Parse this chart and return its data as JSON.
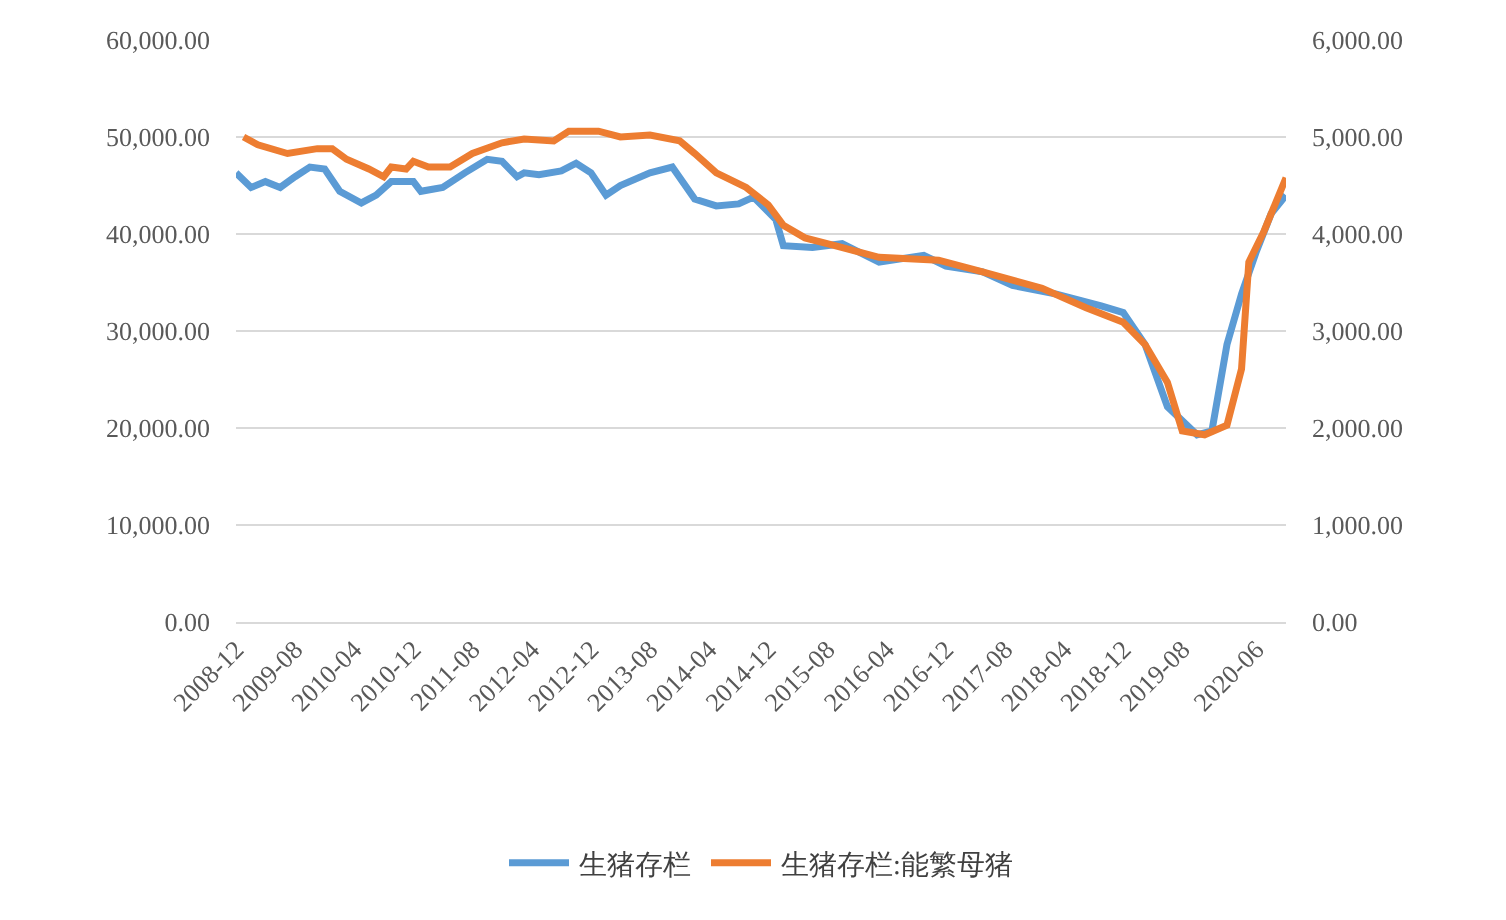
{
  "chart_data": {
    "type": "line",
    "grid": "y",
    "legend": "bottom",
    "marker": "none",
    "line_style": "solid",
    "xlim": [
      "2008-12",
      "2020-10"
    ],
    "xticks": [
      {
        "value": "2008-12",
        "label": "2008-12"
      },
      {
        "value": "2009-08",
        "label": "2009-08"
      },
      {
        "value": "2010-04",
        "label": "2010-04"
      },
      {
        "value": "2010-12",
        "label": "2010-12"
      },
      {
        "value": "2011-08",
        "label": "2011-08"
      },
      {
        "value": "2012-04",
        "label": "2012-04"
      },
      {
        "value": "2012-12",
        "label": "2012-12"
      },
      {
        "value": "2013-08",
        "label": "2013-08"
      },
      {
        "value": "2014-04",
        "label": "2014-04"
      },
      {
        "value": "2014-12",
        "label": "2014-12"
      },
      {
        "value": "2015-08",
        "label": "2015-08"
      },
      {
        "value": "2016-04",
        "label": "2016-04"
      },
      {
        "value": "2016-12",
        "label": "2016-12"
      },
      {
        "value": "2017-08",
        "label": "2017-08"
      },
      {
        "value": "2018-04",
        "label": "2018-04"
      },
      {
        "value": "2018-12",
        "label": "2018-12"
      },
      {
        "value": "2019-08",
        "label": "2019-08"
      },
      {
        "value": "2020-06",
        "label": "2020-06"
      }
    ],
    "ylim": [
      0,
      60000
    ],
    "yticks": [
      {
        "value": 0,
        "label": "0.00"
      },
      {
        "value": 10000,
        "label": "10,000.00"
      },
      {
        "value": 20000,
        "label": "20,000.00"
      },
      {
        "value": 30000,
        "label": "30,000.00"
      },
      {
        "value": 40000,
        "label": "40,000.00"
      },
      {
        "value": 50000,
        "label": "50,000.00"
      },
      {
        "value": 60000,
        "label": "60,000.00"
      }
    ],
    "y2lim": [
      0,
      6000
    ],
    "y2ticks": [
      {
        "value": 0,
        "label": "0.00"
      },
      {
        "value": 1000,
        "label": "1,000.00"
      },
      {
        "value": 2000,
        "label": "2,000.00"
      },
      {
        "value": 3000,
        "label": "3,000.00"
      },
      {
        "value": 4000,
        "label": "4,000.00"
      },
      {
        "value": 5000,
        "label": "5,000.00"
      },
      {
        "value": 6000,
        "label": "6,000.00"
      }
    ],
    "series": [
      {
        "name": "生猪存栏",
        "color": "#5b9bd5",
        "x": [
          "2008-12",
          "2009-02",
          "2009-04",
          "2009-06",
          "2009-08",
          "2009-10",
          "2009-12",
          "2010-02",
          "2010-05",
          "2010-07",
          "2010-09",
          "2010-12",
          "2011-01",
          "2011-04",
          "2011-07",
          "2011-10",
          "2011-12",
          "2012-02",
          "2012-03",
          "2012-05",
          "2012-08",
          "2012-10",
          "2012-12",
          "2013-02",
          "2013-04",
          "2013-08",
          "2013-11",
          "2014-02",
          "2014-05",
          "2014-08",
          "2014-10",
          "2015-01",
          "2015-02",
          "2015-06",
          "2015-10",
          "2016-03",
          "2016-09",
          "2016-12",
          "2017-05",
          "2017-09",
          "2018-03",
          "2018-09",
          "2018-12",
          "2019-03",
          "2019-06",
          "2019-10",
          "2019-12",
          "2020-02",
          "2020-04",
          "2020-06",
          "2020-08",
          "2020-10"
        ],
        "values": [
          46300,
          44800,
          45400,
          44800,
          45900,
          46900,
          46700,
          44400,
          43200,
          44000,
          45400,
          45400,
          44400,
          44800,
          46300,
          47700,
          47500,
          45900,
          46300,
          46100,
          46500,
          47300,
          46300,
          44000,
          45000,
          46300,
          46900,
          43600,
          42900,
          43100,
          43800,
          41500,
          38800,
          38600,
          39000,
          37100,
          37800,
          36700,
          36100,
          34700,
          33800,
          32600,
          31900,
          28600,
          22200,
          19300,
          19700,
          28600,
          33800,
          38200,
          42100,
          44000
        ]
      },
      {
        "name": "生猪存栏:能繁母猪",
        "color": "#ed7d31",
        "axis": "y2",
        "x": [
          "2009-01",
          "2009-03",
          "2009-07",
          "2009-11",
          "2010-01",
          "2010-03",
          "2010-06",
          "2010-08",
          "2010-09",
          "2010-11",
          "2010-12",
          "2011-02",
          "2011-05",
          "2011-08",
          "2011-12",
          "2012-03",
          "2012-07",
          "2012-09",
          "2013-01",
          "2013-04",
          "2013-08",
          "2013-12",
          "2014-02",
          "2014-05",
          "2014-09",
          "2014-12",
          "2015-02",
          "2015-05",
          "2015-09",
          "2016-03",
          "2016-11",
          "2017-05",
          "2018-01",
          "2018-07",
          "2018-12",
          "2019-03",
          "2019-06",
          "2019-08",
          "2019-11",
          "2020-02",
          "2020-04",
          "2020-05",
          "2020-07",
          "2020-10"
        ],
        "values": [
          5000,
          4920,
          4830,
          4880,
          4880,
          4770,
          4670,
          4590,
          4690,
          4670,
          4750,
          4690,
          4690,
          4830,
          4940,
          4980,
          4960,
          5060,
          5060,
          5000,
          5020,
          4960,
          4830,
          4630,
          4480,
          4300,
          4090,
          3960,
          3880,
          3760,
          3730,
          3610,
          3440,
          3240,
          3090,
          2860,
          2470,
          1970,
          1930,
          2030,
          2610,
          3710,
          4020,
          4580
        ]
      }
    ]
  }
}
